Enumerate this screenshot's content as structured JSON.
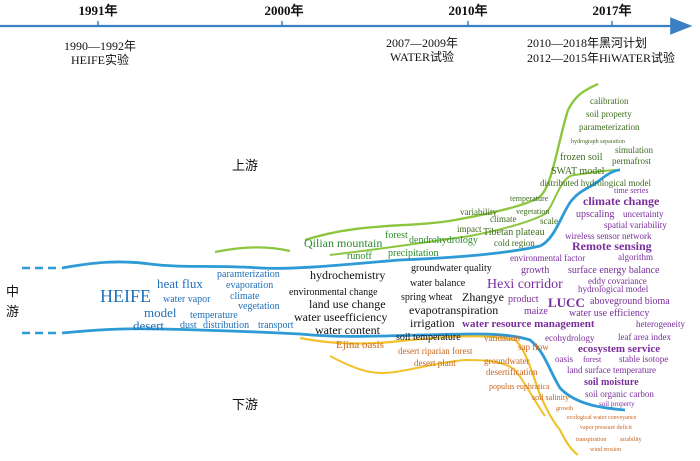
{
  "timeline": {
    "years": [
      "1991年",
      "2000年",
      "2010年",
      "2017年"
    ],
    "events": [
      {
        "line1": "1990—1992年",
        "line2": "HEIFE实验"
      },
      {
        "line1": "2007—2009年",
        "line2": "WATER试验"
      },
      {
        "line1": "2010—2018年黑河计划",
        "line2": "2012—2015年HiWATER试验"
      }
    ]
  },
  "regions": {
    "upstream": "上游",
    "midstream_1": "中",
    "midstream_2": "游",
    "downstream": "下游"
  },
  "colors": {
    "timeline": "#3b7fc4",
    "midstream": "#2e9bd6",
    "upstream": "#8cc63f",
    "downstream": "#f2c12e",
    "blue_text": "#2070b8",
    "green_text": "#2e8b2e",
    "dark_green": "#3d6b1f",
    "purple": "#7a2d9c",
    "orange": "#c8651b",
    "black": "#111111"
  },
  "keywords": {
    "blue": [
      "HEIFE",
      "heat flux",
      "water vapor",
      "model",
      "desert",
      "paramterization",
      "evaporation",
      "climate",
      "temperature",
      "vegetation",
      "dust",
      "distribution",
      "transport"
    ],
    "black": [
      "hydrochemistry",
      "environmental change",
      "land use change",
      "water useefficiency",
      "water content",
      "groundwater quality",
      "water balance",
      "spring wheat",
      "Zhangye",
      "evapotranspiration",
      "irrigation",
      "soil temperature"
    ],
    "green": [
      "Qilian mountain",
      "runoff",
      "forest",
      "dendrohydrology",
      "precipitation",
      "variability",
      "climate",
      "impact",
      "vegetation",
      "scale",
      "Tibetan plateau",
      "cold region",
      "temperature",
      "distributed hydrological model",
      "frozen soil",
      "SWAT model",
      "permafrost",
      "simulation",
      "hydrograph separation",
      "parameterization",
      "soil property",
      "calibration"
    ],
    "purple": [
      "climate change",
      "time series",
      "upscaling",
      "uncertainty",
      "spatial variability",
      "wireless sensor network",
      "Remote sensing",
      "algorithm",
      "environmental factor",
      "growth",
      "surface energy balance",
      "eddy covariance",
      "Hexi corridor",
      "hydrological model",
      "LUCC",
      "product",
      "aboveground bioma",
      "maize",
      "water use efficiency",
      "water resource management",
      "heterogeneity",
      "leaf area index",
      "ecohydrology",
      "ecosystem service",
      "oasis",
      "forest",
      "stable isotope",
      "land surface temperature",
      "soil moisture",
      "soil organic carbon",
      "soil property"
    ],
    "orange": [
      "Ejina oasis",
      "desert riparian forest",
      "desert plant",
      "groundwater",
      "validation",
      "sap flow",
      "desertification",
      "populus euphratica",
      "soil salinity",
      "growth",
      "ecological water conveyance",
      "vapor pressure deficit",
      "transpiration",
      "ariability",
      "wind erosion"
    ]
  }
}
